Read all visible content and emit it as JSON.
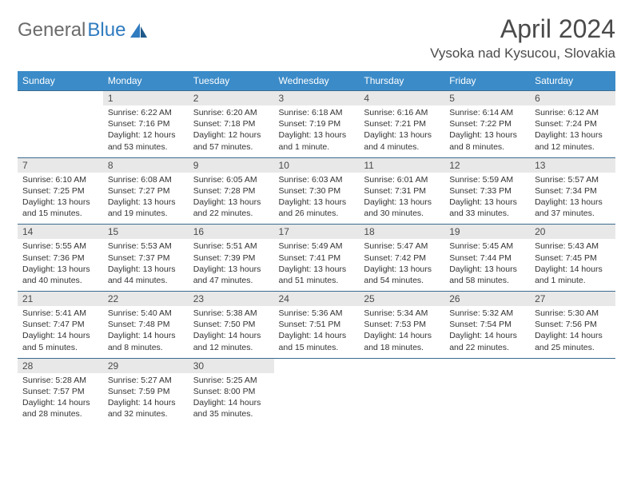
{
  "logo": {
    "part1": "General",
    "part2": "Blue"
  },
  "title": "April 2024",
  "location": "Vysoka nad Kysucou, Slovakia",
  "colors": {
    "header_bg": "#3b8bc8",
    "header_text": "#ffffff",
    "daynum_bg": "#e8e8e8",
    "border": "#3b6b8f",
    "logo_gray": "#6b6b6b",
    "logo_blue": "#2f7bbf"
  },
  "weekdays": [
    "Sunday",
    "Monday",
    "Tuesday",
    "Wednesday",
    "Thursday",
    "Friday",
    "Saturday"
  ],
  "weeks": [
    {
      "nums": [
        "",
        "1",
        "2",
        "3",
        "4",
        "5",
        "6"
      ],
      "cells": [
        null,
        {
          "sunrise": "Sunrise: 6:22 AM",
          "sunset": "Sunset: 7:16 PM",
          "day1": "Daylight: 12 hours",
          "day2": "and 53 minutes."
        },
        {
          "sunrise": "Sunrise: 6:20 AM",
          "sunset": "Sunset: 7:18 PM",
          "day1": "Daylight: 12 hours",
          "day2": "and 57 minutes."
        },
        {
          "sunrise": "Sunrise: 6:18 AM",
          "sunset": "Sunset: 7:19 PM",
          "day1": "Daylight: 13 hours",
          "day2": "and 1 minute."
        },
        {
          "sunrise": "Sunrise: 6:16 AM",
          "sunset": "Sunset: 7:21 PM",
          "day1": "Daylight: 13 hours",
          "day2": "and 4 minutes."
        },
        {
          "sunrise": "Sunrise: 6:14 AM",
          "sunset": "Sunset: 7:22 PM",
          "day1": "Daylight: 13 hours",
          "day2": "and 8 minutes."
        },
        {
          "sunrise": "Sunrise: 6:12 AM",
          "sunset": "Sunset: 7:24 PM",
          "day1": "Daylight: 13 hours",
          "day2": "and 12 minutes."
        }
      ]
    },
    {
      "nums": [
        "7",
        "8",
        "9",
        "10",
        "11",
        "12",
        "13"
      ],
      "cells": [
        {
          "sunrise": "Sunrise: 6:10 AM",
          "sunset": "Sunset: 7:25 PM",
          "day1": "Daylight: 13 hours",
          "day2": "and 15 minutes."
        },
        {
          "sunrise": "Sunrise: 6:08 AM",
          "sunset": "Sunset: 7:27 PM",
          "day1": "Daylight: 13 hours",
          "day2": "and 19 minutes."
        },
        {
          "sunrise": "Sunrise: 6:05 AM",
          "sunset": "Sunset: 7:28 PM",
          "day1": "Daylight: 13 hours",
          "day2": "and 22 minutes."
        },
        {
          "sunrise": "Sunrise: 6:03 AM",
          "sunset": "Sunset: 7:30 PM",
          "day1": "Daylight: 13 hours",
          "day2": "and 26 minutes."
        },
        {
          "sunrise": "Sunrise: 6:01 AM",
          "sunset": "Sunset: 7:31 PM",
          "day1": "Daylight: 13 hours",
          "day2": "and 30 minutes."
        },
        {
          "sunrise": "Sunrise: 5:59 AM",
          "sunset": "Sunset: 7:33 PM",
          "day1": "Daylight: 13 hours",
          "day2": "and 33 minutes."
        },
        {
          "sunrise": "Sunrise: 5:57 AM",
          "sunset": "Sunset: 7:34 PM",
          "day1": "Daylight: 13 hours",
          "day2": "and 37 minutes."
        }
      ]
    },
    {
      "nums": [
        "14",
        "15",
        "16",
        "17",
        "18",
        "19",
        "20"
      ],
      "cells": [
        {
          "sunrise": "Sunrise: 5:55 AM",
          "sunset": "Sunset: 7:36 PM",
          "day1": "Daylight: 13 hours",
          "day2": "and 40 minutes."
        },
        {
          "sunrise": "Sunrise: 5:53 AM",
          "sunset": "Sunset: 7:37 PM",
          "day1": "Daylight: 13 hours",
          "day2": "and 44 minutes."
        },
        {
          "sunrise": "Sunrise: 5:51 AM",
          "sunset": "Sunset: 7:39 PM",
          "day1": "Daylight: 13 hours",
          "day2": "and 47 minutes."
        },
        {
          "sunrise": "Sunrise: 5:49 AM",
          "sunset": "Sunset: 7:41 PM",
          "day1": "Daylight: 13 hours",
          "day2": "and 51 minutes."
        },
        {
          "sunrise": "Sunrise: 5:47 AM",
          "sunset": "Sunset: 7:42 PM",
          "day1": "Daylight: 13 hours",
          "day2": "and 54 minutes."
        },
        {
          "sunrise": "Sunrise: 5:45 AM",
          "sunset": "Sunset: 7:44 PM",
          "day1": "Daylight: 13 hours",
          "day2": "and 58 minutes."
        },
        {
          "sunrise": "Sunrise: 5:43 AM",
          "sunset": "Sunset: 7:45 PM",
          "day1": "Daylight: 14 hours",
          "day2": "and 1 minute."
        }
      ]
    },
    {
      "nums": [
        "21",
        "22",
        "23",
        "24",
        "25",
        "26",
        "27"
      ],
      "cells": [
        {
          "sunrise": "Sunrise: 5:41 AM",
          "sunset": "Sunset: 7:47 PM",
          "day1": "Daylight: 14 hours",
          "day2": "and 5 minutes."
        },
        {
          "sunrise": "Sunrise: 5:40 AM",
          "sunset": "Sunset: 7:48 PM",
          "day1": "Daylight: 14 hours",
          "day2": "and 8 minutes."
        },
        {
          "sunrise": "Sunrise: 5:38 AM",
          "sunset": "Sunset: 7:50 PM",
          "day1": "Daylight: 14 hours",
          "day2": "and 12 minutes."
        },
        {
          "sunrise": "Sunrise: 5:36 AM",
          "sunset": "Sunset: 7:51 PM",
          "day1": "Daylight: 14 hours",
          "day2": "and 15 minutes."
        },
        {
          "sunrise": "Sunrise: 5:34 AM",
          "sunset": "Sunset: 7:53 PM",
          "day1": "Daylight: 14 hours",
          "day2": "and 18 minutes."
        },
        {
          "sunrise": "Sunrise: 5:32 AM",
          "sunset": "Sunset: 7:54 PM",
          "day1": "Daylight: 14 hours",
          "day2": "and 22 minutes."
        },
        {
          "sunrise": "Sunrise: 5:30 AM",
          "sunset": "Sunset: 7:56 PM",
          "day1": "Daylight: 14 hours",
          "day2": "and 25 minutes."
        }
      ]
    },
    {
      "nums": [
        "28",
        "29",
        "30",
        "",
        "",
        "",
        ""
      ],
      "cells": [
        {
          "sunrise": "Sunrise: 5:28 AM",
          "sunset": "Sunset: 7:57 PM",
          "day1": "Daylight: 14 hours",
          "day2": "and 28 minutes."
        },
        {
          "sunrise": "Sunrise: 5:27 AM",
          "sunset": "Sunset: 7:59 PM",
          "day1": "Daylight: 14 hours",
          "day2": "and 32 minutes."
        },
        {
          "sunrise": "Sunrise: 5:25 AM",
          "sunset": "Sunset: 8:00 PM",
          "day1": "Daylight: 14 hours",
          "day2": "and 35 minutes."
        },
        null,
        null,
        null,
        null
      ]
    }
  ]
}
